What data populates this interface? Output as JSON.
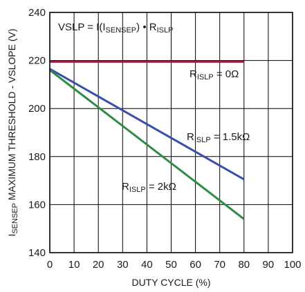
{
  "chart_data": {
    "type": "line",
    "title": "",
    "xlabel": "DUTY CYCLE (%)",
    "ylabel": {
      "parts": [
        {
          "text": "I",
          "sub": false
        },
        {
          "text": "SENSEP",
          "sub": true
        },
        {
          "text": " MAXIMUM THRESHOLD - VSLOPE (V)",
          "sub": false
        }
      ]
    },
    "xlim": [
      0,
      100
    ],
    "ylim": [
      140,
      240
    ],
    "x_ticks": [
      0,
      10,
      20,
      30,
      40,
      50,
      60,
      70,
      80,
      90,
      100
    ],
    "y_ticks": [
      140,
      160,
      180,
      200,
      220,
      240
    ],
    "grid": true,
    "series": [
      {
        "name": "R_ISLP = 0Ω",
        "color": "#9b1b3b",
        "x": [
          0,
          80
        ],
        "y": [
          219.5,
          219.5
        ]
      },
      {
        "name": "R_ISLP = 1.5kΩ",
        "color": "#3b4ea8",
        "x": [
          0,
          80
        ],
        "y": [
          216.5,
          170.5
        ]
      },
      {
        "name": "R_ISLP = 2kΩ",
        "color": "#2e8b46",
        "x": [
          0,
          80
        ],
        "y": [
          216,
          154
        ]
      }
    ],
    "annotations": [
      {
        "id": "formula",
        "parts": [
          {
            "text": "VSLP = I(I",
            "sub": false
          },
          {
            "text": "SENSEP",
            "sub": true
          },
          {
            "text": ") • R",
            "sub": false
          },
          {
            "text": "ISLP",
            "sub": true
          }
        ]
      },
      {
        "id": "label-0ohm",
        "parts": [
          {
            "text": "R",
            "sub": false
          },
          {
            "text": "ISLP",
            "sub": true
          },
          {
            "text": " = 0Ω",
            "sub": false
          }
        ]
      },
      {
        "id": "label-1p5k",
        "parts": [
          {
            "text": "R",
            "sub": false
          },
          {
            "text": "ISLP",
            "sub": true
          },
          {
            "text": " = 1.5kΩ",
            "sub": false
          }
        ]
      },
      {
        "id": "label-2k",
        "parts": [
          {
            "text": "R",
            "sub": false
          },
          {
            "text": "ISLP",
            "sub": true
          },
          {
            "text": " = 2kΩ",
            "sub": false
          }
        ]
      }
    ]
  }
}
